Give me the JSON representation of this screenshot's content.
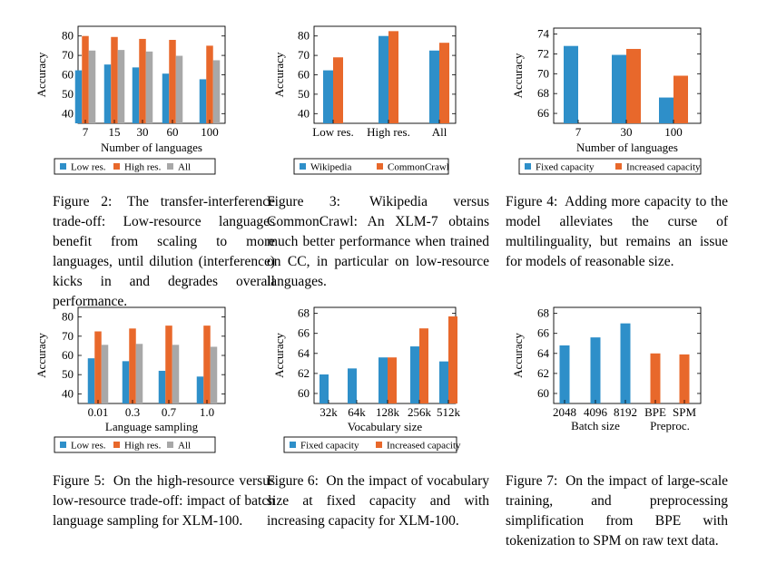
{
  "colors": {
    "blue": "#2e8fc9",
    "orange": "#e8682b",
    "gray": "#a8a8a8"
  },
  "chart_data": [
    {
      "id": "fig2",
      "type": "bar",
      "categories": [
        "7",
        "15",
        "30",
        "60",
        "100"
      ],
      "series": [
        {
          "name": "Low res.",
          "values": [
            62.3,
            65.3,
            63.8,
            60.6,
            57.7
          ],
          "color": "blue"
        },
        {
          "name": "High res.",
          "values": [
            80.0,
            79.5,
            78.5,
            78.0,
            75.0
          ],
          "color": "orange"
        },
        {
          "name": "All",
          "values": [
            72.5,
            72.8,
            72.0,
            69.8,
            67.5
          ],
          "color": "gray"
        }
      ],
      "xlabel": "Number of languages",
      "ylabel": "Accuracy",
      "ylim": [
        35,
        85
      ],
      "yticks": [
        40,
        50,
        60,
        70,
        80
      ]
    },
    {
      "id": "fig3",
      "type": "bar",
      "categories": [
        "Low res.",
        "High res.",
        "All"
      ],
      "series": [
        {
          "name": "Wikipedia",
          "values": [
            62.3,
            80.0,
            72.5
          ],
          "color": "blue"
        },
        {
          "name": "CommonCrawl",
          "values": [
            69.0,
            82.5,
            76.5
          ],
          "color": "orange"
        }
      ],
      "xlabel": "",
      "ylabel": "Accuracy",
      "ylim": [
        35,
        85
      ],
      "yticks": [
        40,
        50,
        60,
        70,
        80
      ]
    },
    {
      "id": "fig4",
      "type": "bar",
      "categories": [
        "7",
        "30",
        "100"
      ],
      "series": [
        {
          "name": "Fixed capacity",
          "values": [
            72.8,
            71.9,
            67.6
          ],
          "color": "blue"
        },
        {
          "name": "Increased capacity",
          "values": [
            null,
            72.5,
            69.8
          ],
          "color": "orange"
        }
      ],
      "xlabel": "Number of languages",
      "ylabel": "Accuracy",
      "ylim": [
        65,
        74.6
      ],
      "yticks": [
        66,
        68,
        70,
        72,
        74
      ]
    },
    {
      "id": "fig5",
      "type": "bar",
      "categories": [
        "0.01",
        "0.3",
        "0.7",
        "1.0"
      ],
      "series": [
        {
          "name": "Low res.",
          "values": [
            58.5,
            57.0,
            52.0,
            49.0
          ],
          "color": "blue"
        },
        {
          "name": "High res.",
          "values": [
            72.5,
            74.0,
            75.5,
            75.5
          ],
          "color": "orange"
        },
        {
          "name": "All",
          "values": [
            65.5,
            66.0,
            65.5,
            64.5
          ],
          "color": "gray"
        }
      ],
      "xlabel": "Language sampling",
      "ylabel": "Accuracy",
      "ylim": [
        35,
        85
      ],
      "yticks": [
        40,
        50,
        60,
        70,
        80
      ]
    },
    {
      "id": "fig6",
      "type": "bar",
      "categories": [
        "32k",
        "64k",
        "128k",
        "256k",
        "512k"
      ],
      "series": [
        {
          "name": "Fixed capacity",
          "values": [
            61.9,
            62.5,
            63.6,
            64.7,
            63.2
          ],
          "color": "blue"
        },
        {
          "name": "Increased capacity",
          "values": [
            null,
            null,
            63.6,
            66.5,
            67.7
          ],
          "color": "orange"
        }
      ],
      "xlabel": "Vocabulary size",
      "ylabel": "Accuracy",
      "ylim": [
        59,
        68.6
      ],
      "yticks": [
        60,
        62,
        64,
        66,
        68
      ]
    },
    {
      "id": "fig7",
      "type": "bar",
      "categories": [
        "2048",
        "4096",
        "8192",
        "BPE",
        "SPM"
      ],
      "series": [
        {
          "name": "Batch size",
          "values": [
            64.8,
            65.6,
            67.0,
            null,
            null
          ],
          "color": "blue"
        },
        {
          "name": "Preproc.",
          "values": [
            null,
            null,
            null,
            64.0,
            63.9
          ],
          "color": "orange"
        }
      ],
      "xlabel": "",
      "group_labels": [
        "Batch size",
        "Preproc."
      ],
      "ylabel": "Accuracy",
      "ylim": [
        59,
        68.6
      ],
      "yticks": [
        60,
        62,
        64,
        66,
        68
      ]
    }
  ],
  "captions": {
    "fig2": {
      "label": "Figure 2:",
      "text": "The transfer-interference trade-off: Low-resource languages benefit from scaling to more languages, until dilution (interference) kicks in and degrades overall performance."
    },
    "fig3": {
      "label": "Figure 3:",
      "text": "Wikipedia versus CommonCrawl: An XLM-7 obtains much better performance when trained on CC, in particular on low-resource languages."
    },
    "fig4": {
      "label": "Figure 4:",
      "text": "Adding more capacity to the model alleviates the curse of multilinguality, but remains an issue for models of reasonable size."
    },
    "fig5": {
      "label": "Figure 5:",
      "text": "On the high-resource versus low-resource trade-off: impact of batch language sampling for XLM-100."
    },
    "fig6": {
      "label": "Figure 6:",
      "text": "On the impact of vocabulary size at fixed capacity and with increasing capacity for XLM-100."
    },
    "fig7": {
      "label": "Figure 7:",
      "text": "On the impact of large-scale training, and preprocessing simplification from BPE with tokenization to SPM on raw text data."
    }
  }
}
